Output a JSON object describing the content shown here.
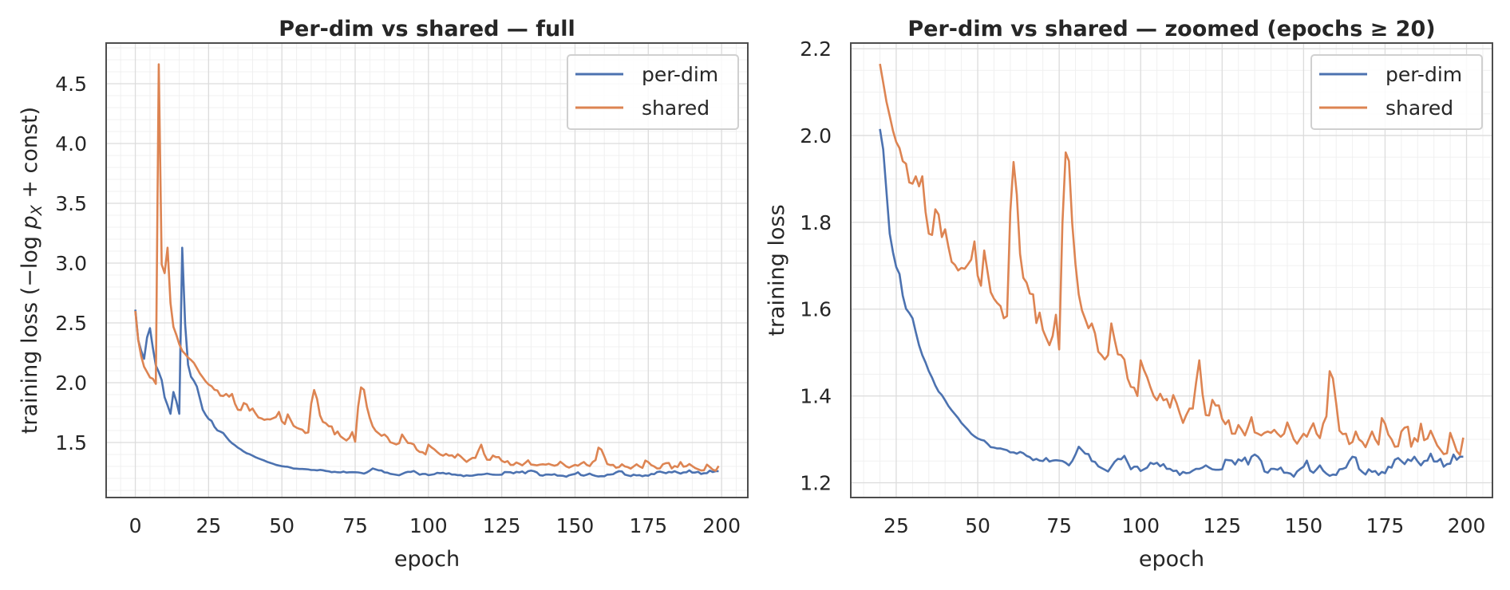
{
  "colors": {
    "per-dim": "#4c72b0",
    "shared": "#dd8452",
    "grid_major": "#dcdcdc",
    "grid_minor": "#f0f0f0",
    "spine": "#4d4d4d"
  },
  "chart_data": [
    {
      "type": "line",
      "title": "Per-dim vs shared — full",
      "xlabel": "epoch",
      "ylabel": {
        "prefix": "training loss  (−log ",
        "var": "p",
        "sub": "X",
        "suffix": " + const)"
      },
      "xlim": [
        -9.95,
        208.95
      ],
      "ylim": [
        1.04,
        4.84
      ],
      "xticks": [
        "0",
        "25",
        "50",
        "75",
        "100",
        "125",
        "150",
        "175",
        "200"
      ],
      "yticks": [
        "1.5",
        "2.0",
        "2.5",
        "3.0",
        "3.5",
        "4.0",
        "4.5"
      ],
      "grid": true,
      "minor_grid": true,
      "legend": "top-right",
      "x": {
        "start": 0,
        "end": 199,
        "step": 1
      },
      "series": [
        {
          "name": "per-dim",
          "values": [
            2.611,
            2.356,
            2.267,
            2.2,
            2.378,
            2.456,
            2.289,
            2.144,
            2.089,
            2.022,
            1.878,
            1.811,
            1.74,
            1.922,
            1.844,
            1.74,
            3.129,
            2.489,
            2.15,
            2.05,
            2.015,
            1.968,
            1.871,
            1.774,
            1.731,
            1.697,
            1.681,
            1.631,
            1.601,
            1.591,
            1.579,
            1.547,
            1.517,
            1.494,
            1.477,
            1.457,
            1.442,
            1.424,
            1.41,
            1.402,
            1.39,
            1.377,
            1.367,
            1.358,
            1.349,
            1.338,
            1.33,
            1.322,
            1.313,
            1.307,
            1.302,
            1.299,
            1.297,
            1.29,
            1.282,
            1.281,
            1.279,
            1.279,
            1.277,
            1.275,
            1.27,
            1.27,
            1.267,
            1.271,
            1.268,
            1.262,
            1.259,
            1.252,
            1.255,
            1.251,
            1.25,
            1.257,
            1.249,
            1.251,
            1.252,
            1.251,
            1.25,
            1.246,
            1.24,
            1.25,
            1.265,
            1.283,
            1.275,
            1.267,
            1.266,
            1.25,
            1.248,
            1.238,
            1.234,
            1.23,
            1.226,
            1.237,
            1.248,
            1.255,
            1.254,
            1.262,
            1.247,
            1.231,
            1.237,
            1.237,
            1.227,
            1.231,
            1.235,
            1.246,
            1.243,
            1.246,
            1.238,
            1.243,
            1.232,
            1.232,
            1.227,
            1.228,
            1.218,
            1.225,
            1.222,
            1.223,
            1.228,
            1.232,
            1.232,
            1.235,
            1.24,
            1.235,
            1.231,
            1.23,
            1.23,
            1.231,
            1.253,
            1.252,
            1.251,
            1.242,
            1.254,
            1.25,
            1.258,
            1.242,
            1.26,
            1.265,
            1.26,
            1.25,
            1.226,
            1.223,
            1.232,
            1.232,
            1.23,
            1.235,
            1.223,
            1.223,
            1.221,
            1.214,
            1.226,
            1.232,
            1.237,
            1.251,
            1.228,
            1.223,
            1.231,
            1.24,
            1.228,
            1.221,
            1.216,
            1.219,
            1.218,
            1.231,
            1.232,
            1.235,
            1.25,
            1.26,
            1.258,
            1.232,
            1.225,
            1.219,
            1.231,
            1.225,
            1.227,
            1.218,
            1.225,
            1.222,
            1.237,
            1.235,
            1.253,
            1.257,
            1.25,
            1.243,
            1.254,
            1.25,
            1.26,
            1.249,
            1.24,
            1.25,
            1.251,
            1.267,
            1.249,
            1.249,
            1.255,
            1.237,
            1.243,
            1.244,
            1.265,
            1.253,
            1.26,
            1.26
          ]
        },
        {
          "name": "shared",
          "values": [
            2.6,
            2.356,
            2.222,
            2.133,
            2.089,
            2.044,
            2.033,
            1.99,
            4.662,
            2.989,
            2.916,
            3.129,
            2.667,
            2.467,
            2.4,
            2.322,
            2.267,
            2.24,
            2.21,
            2.19,
            2.165,
            2.122,
            2.078,
            2.045,
            2.011,
            1.985,
            1.971,
            1.941,
            1.935,
            1.892,
            1.889,
            1.906,
            1.883,
            1.906,
            1.824,
            1.774,
            1.771,
            1.83,
            1.818,
            1.766,
            1.784,
            1.744,
            1.709,
            1.702,
            1.689,
            1.695,
            1.693,
            1.703,
            1.714,
            1.756,
            1.677,
            1.654,
            1.735,
            1.687,
            1.639,
            1.624,
            1.614,
            1.607,
            1.579,
            1.584,
            1.824,
            1.939,
            1.864,
            1.727,
            1.672,
            1.661,
            1.636,
            1.634,
            1.568,
            1.592,
            1.552,
            1.534,
            1.517,
            1.538,
            1.587,
            1.507,
            1.798,
            1.961,
            1.941,
            1.798,
            1.704,
            1.634,
            1.597,
            1.577,
            1.556,
            1.567,
            1.544,
            1.502,
            1.494,
            1.484,
            1.494,
            1.567,
            1.53,
            1.496,
            1.494,
            1.484,
            1.44,
            1.421,
            1.419,
            1.4,
            1.482,
            1.46,
            1.443,
            1.42,
            1.4,
            1.39,
            1.405,
            1.39,
            1.393,
            1.373,
            1.402,
            1.384,
            1.36,
            1.338,
            1.356,
            1.371,
            1.371,
            1.43,
            1.482,
            1.404,
            1.356,
            1.355,
            1.391,
            1.378,
            1.378,
            1.347,
            1.335,
            1.344,
            1.313,
            1.313,
            1.333,
            1.322,
            1.309,
            1.329,
            1.351,
            1.316,
            1.313,
            1.309,
            1.315,
            1.318,
            1.315,
            1.322,
            1.313,
            1.306,
            1.313,
            1.339,
            1.32,
            1.3,
            1.29,
            1.302,
            1.313,
            1.306,
            1.323,
            1.337,
            1.313,
            1.303,
            1.336,
            1.353,
            1.457,
            1.44,
            1.383,
            1.32,
            1.312,
            1.313,
            1.289,
            1.294,
            1.318,
            1.3,
            1.294,
            1.282,
            1.3,
            1.318,
            1.3,
            1.288,
            1.349,
            1.336,
            1.311,
            1.3,
            1.283,
            1.284,
            1.318,
            1.327,
            1.329,
            1.283,
            1.303,
            1.295,
            1.336,
            1.298,
            1.302,
            1.32,
            1.303,
            1.286,
            1.276,
            1.266,
            1.268,
            1.315,
            1.295,
            1.273,
            1.264,
            1.304
          ]
        }
      ]
    },
    {
      "type": "line",
      "title": "Per-dim vs shared — zoomed (epochs ≥ 20)",
      "xlabel": "epoch",
      "ylabel": "training loss",
      "xlim": [
        11.05,
        207.95
      ],
      "ylim": [
        1.166,
        2.213
      ],
      "xticks": [
        "25",
        "50",
        "75",
        "100",
        "125",
        "150",
        "175",
        "200"
      ],
      "yticks": [
        "1.2",
        "1.4",
        "1.6",
        "1.8",
        "2.0",
        "2.2"
      ],
      "grid": true,
      "minor_grid": true,
      "legend": "top-right",
      "x": {
        "start": 20,
        "end": 199,
        "step": 1
      },
      "series": [
        {
          "name": "per-dim",
          "values": [
            2.015,
            1.968,
            1.871,
            1.774,
            1.731,
            1.697,
            1.681,
            1.631,
            1.601,
            1.591,
            1.579,
            1.547,
            1.517,
            1.494,
            1.477,
            1.457,
            1.442,
            1.424,
            1.41,
            1.402,
            1.39,
            1.377,
            1.367,
            1.358,
            1.349,
            1.338,
            1.33,
            1.322,
            1.313,
            1.307,
            1.302,
            1.299,
            1.297,
            1.29,
            1.282,
            1.281,
            1.279,
            1.279,
            1.277,
            1.275,
            1.27,
            1.27,
            1.267,
            1.271,
            1.268,
            1.262,
            1.259,
            1.252,
            1.255,
            1.251,
            1.25,
            1.257,
            1.249,
            1.251,
            1.252,
            1.251,
            1.25,
            1.246,
            1.24,
            1.25,
            1.265,
            1.283,
            1.275,
            1.267,
            1.266,
            1.25,
            1.248,
            1.238,
            1.234,
            1.23,
            1.226,
            1.237,
            1.248,
            1.255,
            1.254,
            1.262,
            1.247,
            1.231,
            1.237,
            1.237,
            1.227,
            1.231,
            1.235,
            1.246,
            1.243,
            1.246,
            1.238,
            1.243,
            1.232,
            1.232,
            1.227,
            1.228,
            1.218,
            1.225,
            1.222,
            1.223,
            1.228,
            1.232,
            1.232,
            1.235,
            1.24,
            1.235,
            1.231,
            1.23,
            1.23,
            1.231,
            1.253,
            1.252,
            1.251,
            1.242,
            1.254,
            1.25,
            1.258,
            1.242,
            1.26,
            1.265,
            1.26,
            1.25,
            1.226,
            1.223,
            1.232,
            1.232,
            1.23,
            1.235,
            1.223,
            1.223,
            1.221,
            1.214,
            1.226,
            1.232,
            1.237,
            1.251,
            1.228,
            1.223,
            1.231,
            1.24,
            1.228,
            1.221,
            1.216,
            1.219,
            1.218,
            1.231,
            1.232,
            1.235,
            1.25,
            1.26,
            1.258,
            1.232,
            1.225,
            1.219,
            1.231,
            1.225,
            1.227,
            1.218,
            1.225,
            1.222,
            1.237,
            1.235,
            1.253,
            1.257,
            1.25,
            1.243,
            1.254,
            1.25,
            1.26,
            1.249,
            1.24,
            1.25,
            1.251,
            1.267,
            1.249,
            1.249,
            1.255,
            1.237,
            1.243,
            1.244,
            1.265,
            1.253,
            1.26,
            1.26
          ]
        },
        {
          "name": "shared",
          "values": [
            2.165,
            2.122,
            2.078,
            2.045,
            2.011,
            1.985,
            1.971,
            1.941,
            1.935,
            1.892,
            1.889,
            1.906,
            1.883,
            1.906,
            1.824,
            1.774,
            1.771,
            1.83,
            1.818,
            1.766,
            1.784,
            1.744,
            1.709,
            1.702,
            1.689,
            1.695,
            1.693,
            1.703,
            1.714,
            1.756,
            1.677,
            1.654,
            1.735,
            1.687,
            1.639,
            1.624,
            1.614,
            1.607,
            1.579,
            1.584,
            1.824,
            1.939,
            1.864,
            1.727,
            1.672,
            1.661,
            1.636,
            1.634,
            1.568,
            1.592,
            1.552,
            1.534,
            1.517,
            1.538,
            1.587,
            1.507,
            1.798,
            1.961,
            1.941,
            1.798,
            1.704,
            1.634,
            1.597,
            1.577,
            1.556,
            1.567,
            1.544,
            1.502,
            1.494,
            1.484,
            1.494,
            1.567,
            1.53,
            1.496,
            1.494,
            1.484,
            1.44,
            1.421,
            1.419,
            1.4,
            1.482,
            1.46,
            1.443,
            1.42,
            1.4,
            1.39,
            1.405,
            1.39,
            1.393,
            1.373,
            1.402,
            1.384,
            1.36,
            1.338,
            1.356,
            1.371,
            1.371,
            1.43,
            1.482,
            1.404,
            1.356,
            1.355,
            1.391,
            1.378,
            1.378,
            1.347,
            1.335,
            1.344,
            1.313,
            1.313,
            1.333,
            1.322,
            1.309,
            1.329,
            1.351,
            1.316,
            1.313,
            1.309,
            1.315,
            1.318,
            1.315,
            1.322,
            1.313,
            1.306,
            1.313,
            1.339,
            1.32,
            1.3,
            1.29,
            1.302,
            1.313,
            1.306,
            1.323,
            1.337,
            1.313,
            1.303,
            1.336,
            1.353,
            1.457,
            1.44,
            1.383,
            1.32,
            1.312,
            1.313,
            1.289,
            1.294,
            1.318,
            1.3,
            1.294,
            1.282,
            1.3,
            1.318,
            1.3,
            1.288,
            1.349,
            1.336,
            1.311,
            1.3,
            1.283,
            1.284,
            1.318,
            1.327,
            1.329,
            1.283,
            1.303,
            1.295,
            1.336,
            1.298,
            1.302,
            1.32,
            1.303,
            1.286,
            1.276,
            1.266,
            1.268,
            1.315,
            1.295,
            1.273,
            1.264,
            1.304
          ]
        }
      ]
    }
  ]
}
